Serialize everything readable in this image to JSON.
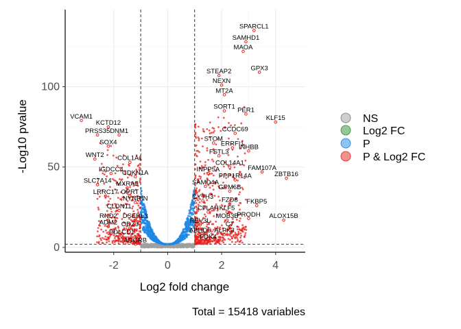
{
  "chart_data": {
    "type": "scatter",
    "xlabel": "Log2 fold change",
    "ylabel": "-Log10 pvalue",
    "caption": "Total = 15418 variables",
    "xlim": [
      -3.8,
      5.1
    ],
    "ylim": [
      -3,
      148
    ],
    "x_ticks": [
      -2,
      0,
      2,
      4
    ],
    "y_ticks": [
      0,
      50,
      100
    ],
    "fc_cutoff": 1,
    "p_cutoff": 2,
    "grid": true,
    "legend_position": "right",
    "colors": {
      "NS": "#a0a0a0",
      "Log2 FC": "#2e8b2e",
      "P": "#1e88e5",
      "P & Log2 FC": "#e8201e"
    },
    "legend": [
      "NS",
      "Log2 FC",
      "P",
      "P & Log2 FC"
    ],
    "labeled_points": [
      {
        "label": "SPARCL1",
        "x": 3.2,
        "y": 135
      },
      {
        "label": "SAMHD1",
        "x": 2.9,
        "y": 128
      },
      {
        "label": "MAOA",
        "x": 2.8,
        "y": 122
      },
      {
        "label": "GPX3",
        "x": 3.4,
        "y": 109
      },
      {
        "label": "STEAP2",
        "x": 1.9,
        "y": 107
      },
      {
        "label": "NEXN",
        "x": 2.0,
        "y": 101
      },
      {
        "label": "MT2A",
        "x": 2.1,
        "y": 95
      },
      {
        "label": "SORT1",
        "x": 2.1,
        "y": 85
      },
      {
        "label": "PER1",
        "x": 2.9,
        "y": 83
      },
      {
        "label": "KLF15",
        "x": 4.0,
        "y": 78
      },
      {
        "label": "CCDC69",
        "x": 2.5,
        "y": 71
      },
      {
        "label": "STOM",
        "x": 1.7,
        "y": 65
      },
      {
        "label": "ERRFI1",
        "x": 2.4,
        "y": 62
      },
      {
        "label": "INHBB",
        "x": 3.0,
        "y": 60
      },
      {
        "label": "FSTL3",
        "x": 1.9,
        "y": 57
      },
      {
        "label": "COL14A1",
        "x": 2.3,
        "y": 50
      },
      {
        "label": "FAM107A",
        "x": 3.5,
        "y": 47
      },
      {
        "label": "ZBTB16",
        "x": 4.4,
        "y": 43
      },
      {
        "label": "INPP5A",
        "x": 1.5,
        "y": 46
      },
      {
        "label": "PPP1R14A",
        "x": 2.5,
        "y": 42
      },
      {
        "label": "SAMD4A",
        "x": 1.4,
        "y": 38
      },
      {
        "label": "GPM6B",
        "x": 2.3,
        "y": 35
      },
      {
        "label": "CYTH3",
        "x": 1.3,
        "y": 29
      },
      {
        "label": "FZD8",
        "x": 2.3,
        "y": 27
      },
      {
        "label": "FKBP5",
        "x": 3.3,
        "y": 26
      },
      {
        "label": "CFLAR",
        "x": 1.5,
        "y": 22
      },
      {
        "label": "KLF5",
        "x": 2.2,
        "y": 22
      },
      {
        "label": "PRODH",
        "x": 3.0,
        "y": 18
      },
      {
        "label": "ALOX15B",
        "x": 4.3,
        "y": 17
      },
      {
        "label": "MOB3B",
        "x": 2.2,
        "y": 17
      },
      {
        "label": "REV3L",
        "x": 1.2,
        "y": 14
      },
      {
        "label": "C7",
        "x": 2.3,
        "y": 12
      },
      {
        "label": "ABHD5",
        "x": 1.2,
        "y": 8
      },
      {
        "label": "ALPK3",
        "x": 2.1,
        "y": 8
      },
      {
        "label": "PDK4",
        "x": 1.5,
        "y": 4
      },
      {
        "label": "VCAM1",
        "x": -3.2,
        "y": 79
      },
      {
        "label": "KCTD12",
        "x": -2.2,
        "y": 75
      },
      {
        "label": "PRSS35",
        "x": -2.6,
        "y": 70
      },
      {
        "label": "DNM1",
        "x": -1.8,
        "y": 70
      },
      {
        "label": "SOX4",
        "x": -2.2,
        "y": 63
      },
      {
        "label": "WNT2",
        "x": -2.7,
        "y": 55
      },
      {
        "label": "COL1A1",
        "x": -1.4,
        "y": 53
      },
      {
        "label": "IGDCC4",
        "x": -2.1,
        "y": 46
      },
      {
        "label": "CDKN1A",
        "x": -1.2,
        "y": 44
      },
      {
        "label": "SLC7A14",
        "x": -2.6,
        "y": 39
      },
      {
        "label": "MXRA5",
        "x": -1.5,
        "y": 37
      },
      {
        "label": "LRRC17",
        "x": -2.3,
        "y": 32
      },
      {
        "label": "OPRT",
        "x": -1.4,
        "y": 32
      },
      {
        "label": "NYNRIN",
        "x": -1.2,
        "y": 28
      },
      {
        "label": "CLDN11",
        "x": -1.8,
        "y": 23
      },
      {
        "label": "RND2",
        "x": -2.2,
        "y": 17
      },
      {
        "label": "DSERL3",
        "x": -1.2,
        "y": 17
      },
      {
        "label": "ADM2",
        "x": -2.2,
        "y": 13
      },
      {
        "label": "ODZ3",
        "x": -1.4,
        "y": 12
      },
      {
        "label": "PDLCD1",
        "x": -1.7,
        "y": 7
      },
      {
        "label": "ADORB",
        "x": -1.2,
        "y": 2
      }
    ]
  }
}
